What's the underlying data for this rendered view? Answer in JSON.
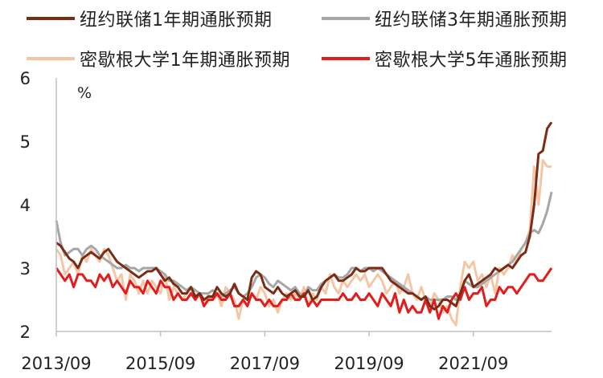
{
  "chart_data": {
    "type": "line",
    "unit": "%",
    "x_tick_labels": [
      "2013/09",
      "2015/09",
      "2017/09",
      "2019/09",
      "2021/09"
    ],
    "y_ticks": [
      2,
      3,
      4,
      5,
      6
    ],
    "ylim": [
      2,
      6
    ],
    "x_start": "2013/09",
    "x_end": "2021/09",
    "grid": false,
    "legend_position": "top",
    "series": [
      {
        "name": "纽约联储1年期通胀预期",
        "color": "#7b2c14",
        "values": [
          3.4,
          3.35,
          3.25,
          3.15,
          3.1,
          3.0,
          3.15,
          3.2,
          3.25,
          3.2,
          3.15,
          3.25,
          3.3,
          3.2,
          3.1,
          3.05,
          3.0,
          2.95,
          2.9,
          2.85,
          2.9,
          2.95,
          2.95,
          3.0,
          2.9,
          2.8,
          2.85,
          2.75,
          2.7,
          2.6,
          2.6,
          2.7,
          2.55,
          2.6,
          2.5,
          2.55,
          2.55,
          2.7,
          2.6,
          2.55,
          2.6,
          2.75,
          2.6,
          2.55,
          2.5,
          2.85,
          2.95,
          2.9,
          2.7,
          2.65,
          2.6,
          2.7,
          2.6,
          2.55,
          2.6,
          2.65,
          2.55,
          2.55,
          2.65,
          2.5,
          2.55,
          2.7,
          2.8,
          2.85,
          2.9,
          2.8,
          2.8,
          2.85,
          2.9,
          3.0,
          2.95,
          2.95,
          3.0,
          3.0,
          3.0,
          3.0,
          2.9,
          2.8,
          2.75,
          2.7,
          2.65,
          2.6,
          2.6,
          2.55,
          2.5,
          2.55,
          2.4,
          2.35,
          2.4,
          2.5,
          2.5,
          2.45,
          2.4,
          2.6,
          2.8,
          2.9,
          2.7,
          2.75,
          2.8,
          2.85,
          2.9,
          3.0,
          2.95,
          3.0,
          3.05,
          3.0,
          3.1,
          3.2,
          3.25,
          3.5,
          4.0,
          4.8,
          4.85,
          5.2,
          5.3
        ]
      },
      {
        "name": "纽约联储3年期通胀预期",
        "color": "#a6a6a6",
        "values": [
          3.75,
          3.4,
          3.2,
          3.25,
          3.3,
          3.3,
          3.2,
          3.3,
          3.35,
          3.3,
          3.2,
          3.15,
          3.1,
          3.05,
          3.0,
          3.0,
          3.05,
          3.0,
          3.0,
          2.95,
          3.0,
          3.0,
          3.0,
          3.0,
          2.95,
          2.9,
          2.8,
          2.8,
          2.75,
          2.7,
          2.65,
          2.7,
          2.65,
          2.6,
          2.6,
          2.6,
          2.65,
          2.6,
          2.55,
          2.6,
          2.65,
          2.7,
          2.6,
          2.55,
          2.6,
          2.7,
          2.85,
          2.9,
          2.85,
          2.75,
          2.7,
          2.8,
          2.75,
          2.7,
          2.65,
          2.7,
          2.6,
          2.55,
          2.7,
          2.65,
          2.65,
          2.75,
          2.8,
          2.85,
          2.9,
          2.85,
          2.85,
          2.9,
          3.0,
          3.0,
          2.95,
          3.0,
          3.0,
          2.95,
          3.0,
          2.95,
          2.9,
          2.85,
          2.8,
          2.75,
          2.7,
          2.65,
          2.6,
          2.55,
          2.5,
          2.55,
          2.5,
          2.5,
          2.5,
          2.5,
          2.55,
          2.55,
          2.5,
          2.6,
          2.8,
          2.75,
          2.7,
          2.7,
          2.75,
          2.8,
          2.85,
          2.9,
          2.95,
          3.0,
          3.05,
          3.1,
          3.2,
          3.3,
          3.4,
          3.55,
          3.6,
          3.55,
          3.7,
          3.9,
          4.2
        ]
      },
      {
        "name": "密歇根大学1年期通胀预期",
        "color": "#f5c6a5",
        "values": [
          3.3,
          3.2,
          2.9,
          3.0,
          3.1,
          2.9,
          3.2,
          3.1,
          3.3,
          3.2,
          3.1,
          3.3,
          3.2,
          3.0,
          2.8,
          2.9,
          2.5,
          2.9,
          2.8,
          2.6,
          2.8,
          2.6,
          2.8,
          2.7,
          2.6,
          2.9,
          2.5,
          2.7,
          2.6,
          2.5,
          2.6,
          2.7,
          2.5,
          2.6,
          2.4,
          2.6,
          2.5,
          2.6,
          2.4,
          2.7,
          2.6,
          2.5,
          2.2,
          2.5,
          2.4,
          2.6,
          2.5,
          2.7,
          2.6,
          2.4,
          2.5,
          2.3,
          2.5,
          2.6,
          2.5,
          2.6,
          2.5,
          2.7,
          2.4,
          2.6,
          2.5,
          2.7,
          2.6,
          2.9,
          2.7,
          2.6,
          2.8,
          2.7,
          2.8,
          2.9,
          2.8,
          2.9,
          2.7,
          2.8,
          2.9,
          2.8,
          2.6,
          2.7,
          2.8,
          2.6,
          2.7,
          2.9,
          2.6,
          2.5,
          2.7,
          2.5,
          2.4,
          2.6,
          2.5,
          2.3,
          2.4,
          2.2,
          2.1,
          2.7,
          3.1,
          3.0,
          3.1,
          2.8,
          2.9,
          2.7,
          2.9,
          2.6,
          3.0,
          2.9,
          3.0,
          3.2,
          3.1,
          3.3,
          3.4,
          3.6,
          4.6,
          4.0,
          4.7,
          4.6,
          4.6
        ]
      },
      {
        "name": "密歇根大学5年通胀预期",
        "color": "#e31c1c",
        "values": [
          3.0,
          2.9,
          2.8,
          2.9,
          2.7,
          2.9,
          2.9,
          2.8,
          2.8,
          2.7,
          2.9,
          2.8,
          2.9,
          2.7,
          2.8,
          2.7,
          2.6,
          2.8,
          2.7,
          2.7,
          2.6,
          2.8,
          2.7,
          2.6,
          2.8,
          2.7,
          2.7,
          2.5,
          2.6,
          2.5,
          2.5,
          2.6,
          2.5,
          2.6,
          2.4,
          2.5,
          2.5,
          2.6,
          2.5,
          2.5,
          2.6,
          2.4,
          2.4,
          2.5,
          2.4,
          2.6,
          2.5,
          2.5,
          2.4,
          2.5,
          2.4,
          2.4,
          2.5,
          2.5,
          2.6,
          2.5,
          2.5,
          2.6,
          2.4,
          2.5,
          2.4,
          2.5,
          2.5,
          2.5,
          2.5,
          2.5,
          2.6,
          2.5,
          2.5,
          2.6,
          2.5,
          2.5,
          2.6,
          2.5,
          2.4,
          2.6,
          2.5,
          2.4,
          2.6,
          2.3,
          2.5,
          2.3,
          2.4,
          2.3,
          2.3,
          2.5,
          2.3,
          2.5,
          2.2,
          2.4,
          2.3,
          2.5,
          2.6,
          2.5,
          2.7,
          2.5,
          2.6,
          2.6,
          2.7,
          2.4,
          2.5,
          2.5,
          2.7,
          2.6,
          2.7,
          2.7,
          2.6,
          2.7,
          2.8,
          2.9,
          2.9,
          2.8,
          2.8,
          2.9,
          3.0
        ]
      }
    ]
  }
}
